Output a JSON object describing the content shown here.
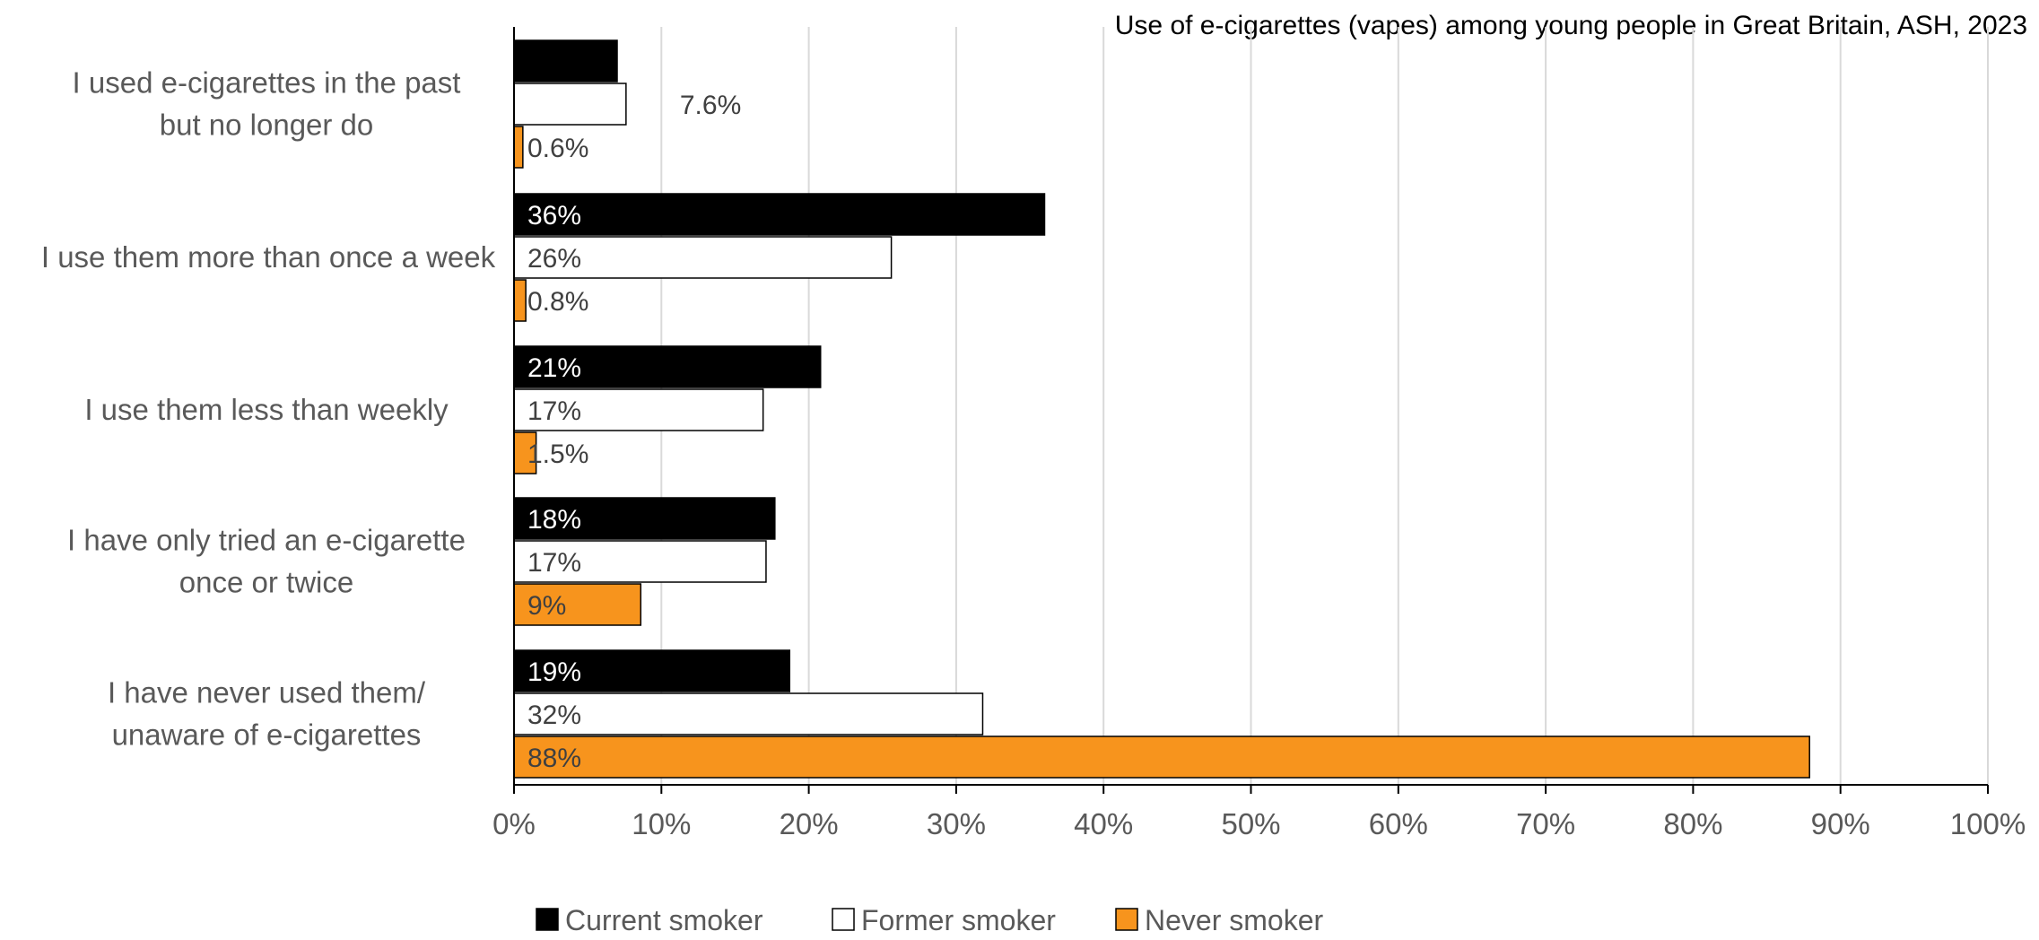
{
  "chart_data": {
    "type": "bar",
    "orientation": "horizontal",
    "title": "Use of e-cigarettes (vapes) among young people in Great Britain, ASH, 2023",
    "categories": [
      [
        "I used e-cigarettes in the past",
        "but no longer do"
      ],
      [
        "I use them more than once a week"
      ],
      [
        "I use them less than weekly"
      ],
      [
        "I have only tried an e-cigarette",
        "once or twice"
      ],
      [
        "I have never used them/",
        "unaware of e-cigarettes"
      ]
    ],
    "series": [
      {
        "name": "Current smoker",
        "color": "#000000",
        "values": [
          7.0,
          36,
          20.8,
          17.7,
          18.7
        ],
        "labels": [
          "7.0%",
          "36%",
          "21%",
          "18%",
          "19%"
        ]
      },
      {
        "name": "Former smoker",
        "color": "#ffffff",
        "values": [
          7.6,
          25.6,
          16.9,
          17.1,
          31.8
        ],
        "labels": [
          "7.6%",
          "26%",
          "17%",
          "17%",
          "32%"
        ]
      },
      {
        "name": "Never smoker",
        "color": "#f7941d",
        "values": [
          0.6,
          0.8,
          1.5,
          8.6,
          87.9
        ],
        "labels": [
          "0.6%",
          "0.8%",
          "1.5%",
          "9%",
          "88%"
        ]
      }
    ],
    "xlim": [
      0,
      100
    ],
    "x_ticks": [
      0,
      10,
      20,
      30,
      40,
      50,
      60,
      70,
      80,
      90,
      100
    ],
    "x_tick_labels": [
      "0%",
      "10%",
      "20%",
      "30%",
      "40%",
      "50%",
      "60%",
      "70%",
      "80%",
      "90%",
      "100%"
    ],
    "grid": true,
    "legend": "bottom"
  }
}
